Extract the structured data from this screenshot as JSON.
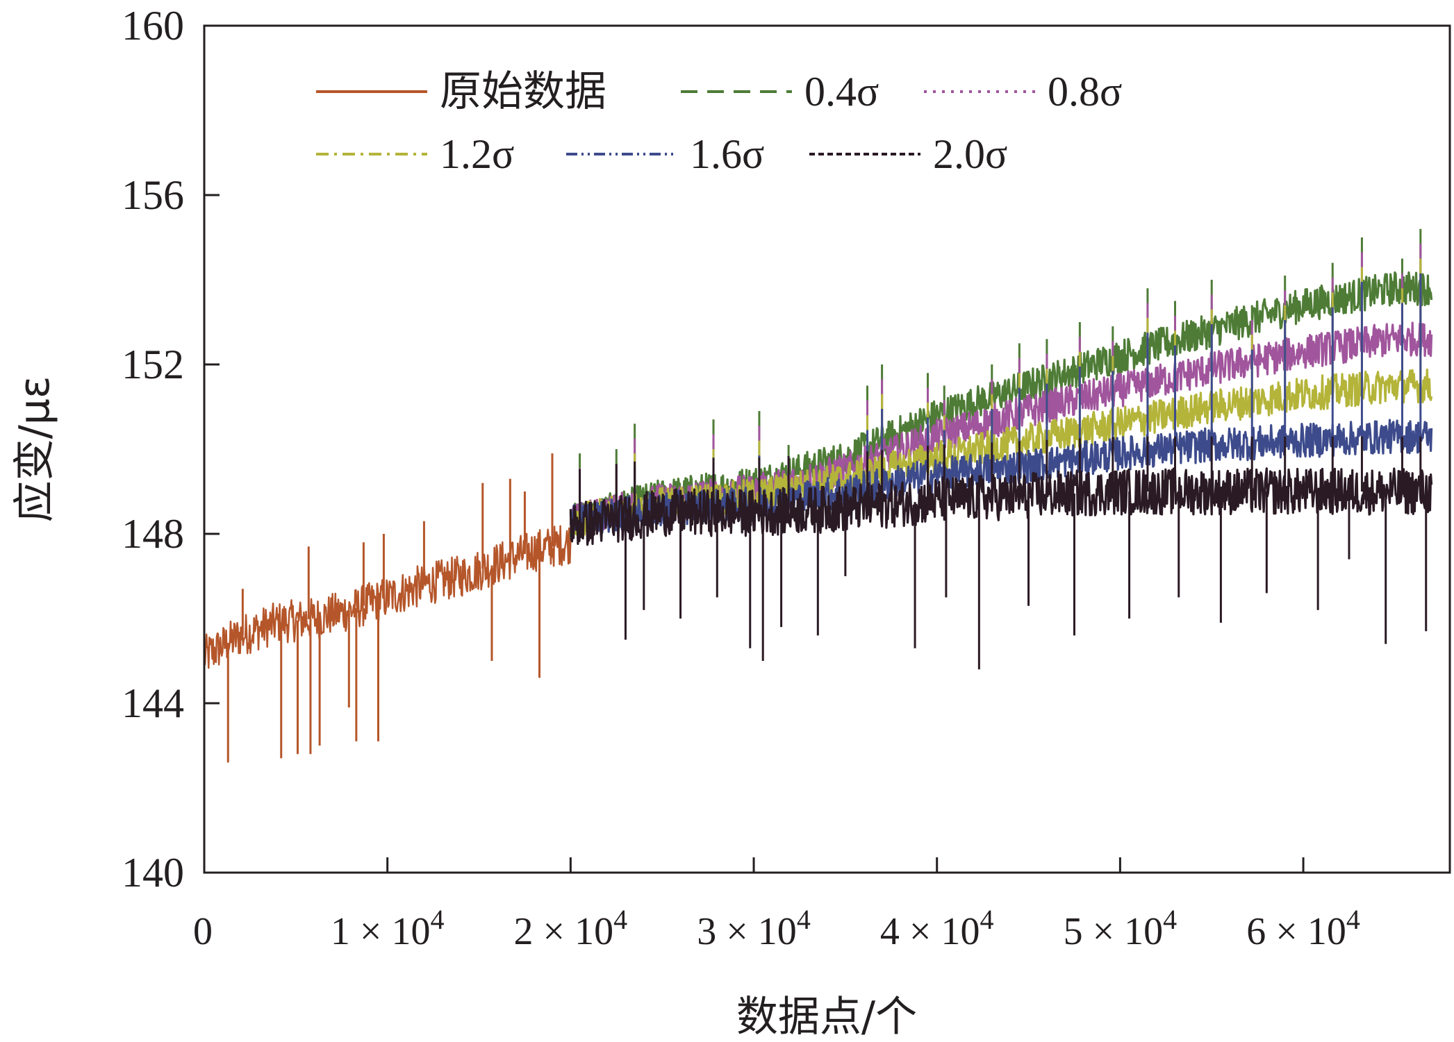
{
  "chart_data": {
    "type": "line",
    "title": "",
    "xlabel": "数据点/个",
    "ylabel": "应变/με",
    "xlim": [
      0,
      68000
    ],
    "ylim": [
      140,
      160
    ],
    "xticks": [
      {
        "value": 0,
        "label": "0"
      },
      {
        "value": 10000,
        "label": "1 × 10",
        "exp": "4"
      },
      {
        "value": 20000,
        "label": "2 × 10",
        "exp": "4"
      },
      {
        "value": 30000,
        "label": "3 × 10",
        "exp": "4"
      },
      {
        "value": 40000,
        "label": "4 × 10",
        "exp": "4"
      },
      {
        "value": 50000,
        "label": "5 × 10",
        "exp": "4"
      },
      {
        "value": 60000,
        "label": "6 × 10",
        "exp": "4"
      }
    ],
    "yticks": [
      {
        "value": 140,
        "label": "140"
      },
      {
        "value": 144,
        "label": "144"
      },
      {
        "value": 148,
        "label": "148"
      },
      {
        "value": 152,
        "label": "152"
      },
      {
        "value": 156,
        "label": "156"
      },
      {
        "value": 160,
        "label": "160"
      }
    ],
    "grid": false,
    "legend_position": "top",
    "series": [
      {
        "name": "原始数据",
        "color": "#b5562a",
        "dash": "solid",
        "x": [
          0,
          2000,
          4000,
          6000,
          8000,
          10000,
          12000,
          14000,
          16000,
          18000,
          20000
        ],
        "y": [
          145.1,
          145.6,
          145.9,
          146.0,
          146.2,
          146.5,
          146.8,
          147.0,
          147.3,
          147.6,
          147.8
        ],
        "noise_band": 0.5,
        "spikes": [
          {
            "x": 1300,
            "y": 142.6
          },
          {
            "x": 2100,
            "y": 146.7
          },
          {
            "x": 4200,
            "y": 142.7
          },
          {
            "x": 5100,
            "y": 142.8
          },
          {
            "x": 5700,
            "y": 147.7
          },
          {
            "x": 5800,
            "y": 142.8
          },
          {
            "x": 6300,
            "y": 143.0
          },
          {
            "x": 7900,
            "y": 143.9
          },
          {
            "x": 8300,
            "y": 143.1
          },
          {
            "x": 8700,
            "y": 147.8
          },
          {
            "x": 9500,
            "y": 143.1
          },
          {
            "x": 9800,
            "y": 148.0
          },
          {
            "x": 12000,
            "y": 148.3
          },
          {
            "x": 15200,
            "y": 149.2
          },
          {
            "x": 15700,
            "y": 145.0
          },
          {
            "x": 16700,
            "y": 149.3
          },
          {
            "x": 17500,
            "y": 149.0
          },
          {
            "x": 18300,
            "y": 144.6
          },
          {
            "x": 19000,
            "y": 149.9
          }
        ]
      },
      {
        "name": "0.4σ",
        "color": "#4e7c36",
        "dash": "dashed",
        "x": [
          20000,
          25000,
          30000,
          35000,
          40000,
          45000,
          50000,
          55000,
          60000,
          65000,
          67000
        ],
        "y": [
          148.3,
          148.9,
          149.2,
          149.8,
          150.8,
          151.5,
          152.2,
          152.8,
          153.4,
          153.8,
          153.8
        ],
        "noise_band": 0.4
      },
      {
        "name": "0.8σ",
        "color": "#a0559c",
        "dash": "dotted",
        "x": [
          20000,
          25000,
          30000,
          35000,
          40000,
          45000,
          50000,
          55000,
          60000,
          65000,
          67000
        ],
        "y": [
          148.3,
          148.8,
          149.0,
          149.5,
          150.3,
          150.9,
          151.4,
          151.9,
          152.3,
          152.6,
          152.6
        ],
        "noise_band": 0.4
      },
      {
        "name": "1.2σ",
        "color": "#b4b43a",
        "dash": "dash-dot",
        "x": [
          20000,
          25000,
          30000,
          35000,
          40000,
          45000,
          50000,
          55000,
          60000,
          65000,
          67000
        ],
        "y": [
          148.3,
          148.7,
          148.9,
          149.3,
          149.8,
          150.2,
          150.6,
          151.0,
          151.3,
          151.5,
          151.5
        ],
        "noise_band": 0.4
      },
      {
        "name": "1.6σ",
        "color": "#3d4b8c",
        "dash": "dash-dot-dot",
        "x": [
          20000,
          25000,
          30000,
          35000,
          40000,
          45000,
          50000,
          55000,
          60000,
          65000,
          67000
        ],
        "y": [
          148.3,
          148.6,
          148.7,
          149.0,
          149.4,
          149.6,
          149.9,
          150.1,
          150.2,
          150.3,
          150.3
        ],
        "noise_band": 0.4
      },
      {
        "name": "2.0σ",
        "color": "#2a1a24",
        "dash": "short-dash",
        "x": [
          20000,
          25000,
          30000,
          35000,
          40000,
          45000,
          50000,
          55000,
          60000,
          65000,
          67000
        ],
        "y": [
          148.2,
          148.5,
          148.5,
          148.6,
          148.8,
          148.9,
          149.0,
          149.0,
          149.0,
          149.0,
          149.0
        ],
        "noise_band": 0.55,
        "spikes": [
          {
            "x": 23000,
            "y": 145.5
          },
          {
            "x": 24000,
            "y": 146.2
          },
          {
            "x": 26000,
            "y": 146.0
          },
          {
            "x": 28000,
            "y": 146.5
          },
          {
            "x": 29800,
            "y": 145.3
          },
          {
            "x": 30500,
            "y": 145.0
          },
          {
            "x": 31500,
            "y": 145.8
          },
          {
            "x": 33500,
            "y": 145.6
          },
          {
            "x": 35000,
            "y": 147.0
          },
          {
            "x": 38800,
            "y": 145.3
          },
          {
            "x": 40500,
            "y": 146.5
          },
          {
            "x": 42300,
            "y": 144.8
          },
          {
            "x": 45000,
            "y": 146.3
          },
          {
            "x": 47500,
            "y": 145.6
          },
          {
            "x": 50500,
            "y": 146.0
          },
          {
            "x": 53200,
            "y": 146.5
          },
          {
            "x": 55500,
            "y": 145.9
          },
          {
            "x": 58000,
            "y": 146.6
          },
          {
            "x": 60800,
            "y": 146.2
          },
          {
            "x": 62500,
            "y": 147.4
          },
          {
            "x": 64500,
            "y": 145.4
          },
          {
            "x": 66700,
            "y": 145.7
          }
        ]
      }
    ],
    "upper_spikes": [
      {
        "x": 20500,
        "y": 149.9
      },
      {
        "x": 22500,
        "y": 150.0
      },
      {
        "x": 23500,
        "y": 150.6
      },
      {
        "x": 27800,
        "y": 150.7
      },
      {
        "x": 30300,
        "y": 150.9
      },
      {
        "x": 31900,
        "y": 150.1
      },
      {
        "x": 36200,
        "y": 151.5
      },
      {
        "x": 37000,
        "y": 152.0
      },
      {
        "x": 39500,
        "y": 151.8
      },
      {
        "x": 40400,
        "y": 151.5
      },
      {
        "x": 43000,
        "y": 152.0
      },
      {
        "x": 44500,
        "y": 152.5
      },
      {
        "x": 46000,
        "y": 152.6
      },
      {
        "x": 47800,
        "y": 153.0
      },
      {
        "x": 49600,
        "y": 152.9
      },
      {
        "x": 51500,
        "y": 153.8
      },
      {
        "x": 53000,
        "y": 153.5
      },
      {
        "x": 55000,
        "y": 154.0
      },
      {
        "x": 57200,
        "y": 153.4
      },
      {
        "x": 59000,
        "y": 154.1
      },
      {
        "x": 61600,
        "y": 154.4
      },
      {
        "x": 63200,
        "y": 155.0
      },
      {
        "x": 65400,
        "y": 154.5
      },
      {
        "x": 66400,
        "y": 155.2
      }
    ]
  }
}
